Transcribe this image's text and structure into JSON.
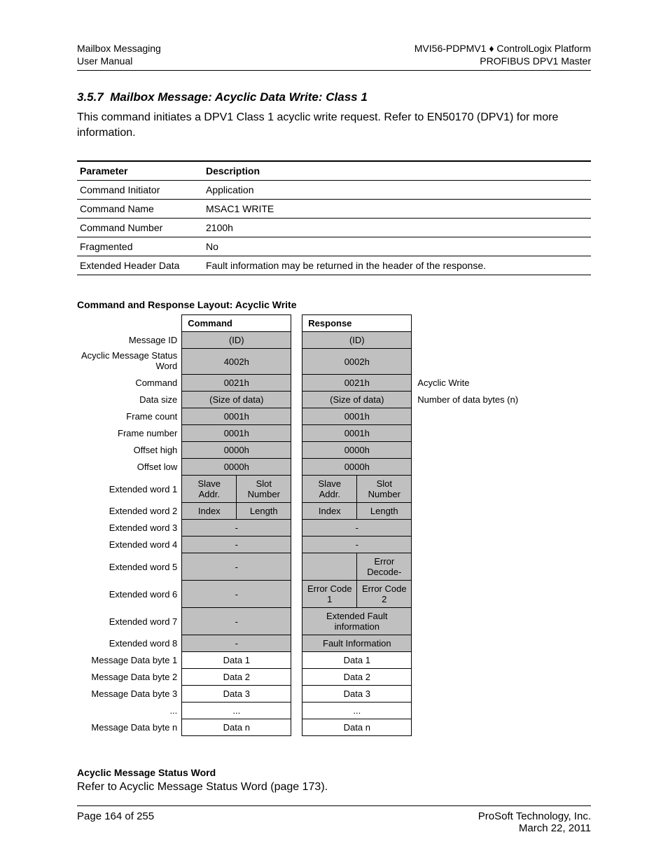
{
  "header": {
    "left_line1": "Mailbox Messaging",
    "left_line2": "User Manual",
    "right_line1": "MVI56-PDPMV1 ♦ ControlLogix Platform",
    "right_line2": "PROFIBUS DPV1 Master"
  },
  "section": {
    "number": "3.5.7",
    "title": "Mailbox Message: Acyclic Data Write: Class 1",
    "body": "This command initiates a DPV1 Class 1 acyclic write request. Refer to EN50170 (DPV1) for more information."
  },
  "param_table": {
    "col1_header": "Parameter",
    "col2_header": "Description",
    "rows": [
      {
        "param": "Command Initiator",
        "desc": "Application"
      },
      {
        "param": "Command Name",
        "desc": "MSAC1 WRITE"
      },
      {
        "param": "Command Number",
        "desc": "2100h"
      },
      {
        "param": "Fragmented",
        "desc": "No"
      },
      {
        "param": "Extended Header Data",
        "desc": "Fault information may be returned in the header of the response."
      }
    ]
  },
  "layout": {
    "heading": "Command and Response Layout: Acyclic Write",
    "col_command": "Command",
    "col_response": "Response",
    "rows": [
      {
        "label": "Message ID",
        "cmd": "(ID)",
        "resp": "(ID)",
        "shaded": true
      },
      {
        "label": "Acyclic Message Status Word",
        "cmd": "4002h",
        "resp": "0002h",
        "shaded": true,
        "multiline": true
      },
      {
        "label": "Command",
        "cmd": "0021h",
        "resp": "0021h",
        "shaded": true,
        "note": "Acyclic Write"
      },
      {
        "label": "Data size",
        "cmd": "(Size of data)",
        "resp": "(Size of data)",
        "shaded": true,
        "note": "Number of data bytes (n)"
      },
      {
        "label": "Frame count",
        "cmd": "0001h",
        "resp": "0001h",
        "shaded": true
      },
      {
        "label": "Frame number",
        "cmd": "0001h",
        "resp": "0001h",
        "shaded": true
      },
      {
        "label": "Offset high",
        "cmd": "0000h",
        "resp": "0000h",
        "shaded": true
      },
      {
        "label": "Offset low",
        "cmd": "0000h",
        "resp": "0000h",
        "shaded": true
      },
      {
        "label": "Extended word 1",
        "cmd_split": [
          "Slave Addr.",
          "Slot Number"
        ],
        "resp_split": [
          "Slave Addr.",
          "Slot Number"
        ],
        "shaded": true
      },
      {
        "label": "Extended word 2",
        "cmd_split": [
          "Index",
          "Length"
        ],
        "resp_split": [
          "Index",
          "Length"
        ],
        "shaded": true
      },
      {
        "label": "Extended word 3",
        "cmd": "-",
        "resp": "-",
        "shaded": true
      },
      {
        "label": "Extended word 4",
        "cmd": "-",
        "resp": "-",
        "shaded": true
      },
      {
        "label": "Extended word 5",
        "cmd": "-",
        "resp_split": [
          "",
          "Error Decode-"
        ],
        "shaded": true
      },
      {
        "label": "Extended word 6",
        "cmd": "-",
        "resp_split": [
          "Error Code 1",
          "Error Code 2"
        ],
        "shaded": true
      },
      {
        "label": "Extended word 7",
        "cmd": "-",
        "resp": "Extended Fault information",
        "shaded": true
      },
      {
        "label": "Extended word 8",
        "cmd": "-",
        "resp": "Fault Information",
        "shaded": true
      },
      {
        "label": "Message Data byte 1",
        "cmd": "Data 1",
        "resp": "Data 1"
      },
      {
        "label": "Message Data byte 2",
        "cmd": "Data 2",
        "resp": "Data 2"
      },
      {
        "label": "Message Data byte 3",
        "cmd": "Data 3",
        "resp": "Data 3"
      },
      {
        "label": "...",
        "cmd": "...",
        "resp": "..."
      },
      {
        "label": "Message Data byte n",
        "cmd": "Data n",
        "resp": "Data n"
      }
    ]
  },
  "status": {
    "heading": "Acyclic Message Status Word",
    "text": "Refer to Acyclic Message Status Word (page 173)."
  },
  "footer": {
    "page": "Page 164 of 255",
    "company": "ProSoft Technology, Inc.",
    "date": "March 22, 2011"
  }
}
